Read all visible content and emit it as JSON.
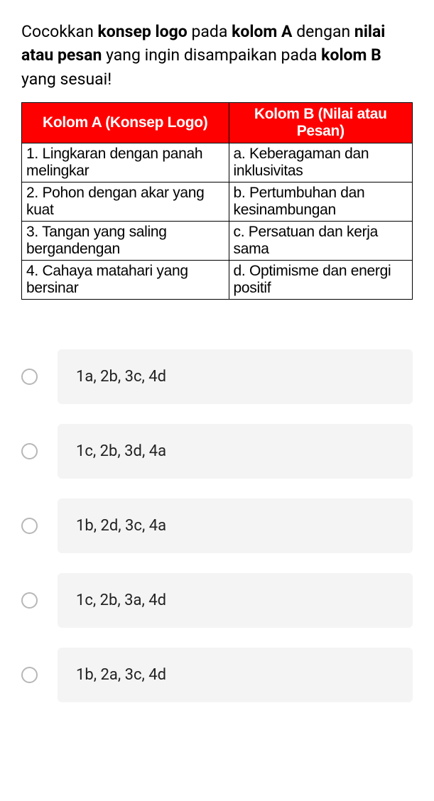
{
  "question": {
    "parts": [
      {
        "t": "Cocokkan ",
        "b": false
      },
      {
        "t": "konsep logo",
        "b": true
      },
      {
        "t": " pada ",
        "b": false
      },
      {
        "t": "kolom A",
        "b": true
      },
      {
        "t": " dengan ",
        "b": false
      },
      {
        "t": "nilai atau pesan",
        "b": true
      },
      {
        "t": " yang ingin disampaikan pada ",
        "b": false
      },
      {
        "t": "kolom B",
        "b": true
      },
      {
        "t": " yang sesuai!",
        "b": false
      }
    ]
  },
  "table": {
    "header_a": "Kolom A (Konsep Logo)",
    "header_b": "Kolom B (Nilai atau Pesan)",
    "rows": [
      {
        "a": "1. Lingkaran dengan panah melingkar",
        "b": "a. Keberagaman dan inklusivitas"
      },
      {
        "a": "2. Pohon dengan akar yang kuat",
        "b": "b. Pertumbuhan dan kesinambungan"
      },
      {
        "a": "3. Tangan yang saling bergandengan",
        "b": "c. Persatuan dan kerja sama"
      },
      {
        "a": "4. Cahaya matahari yang bersinar",
        "b": "d. Optimisme dan energi positif"
      }
    ],
    "header_bg": "#ff0000",
    "header_fg": "#ffffff",
    "border_color": "#000000"
  },
  "options": [
    "1a, 2b, 3c, 4d",
    "1c, 2b, 3d, 4a",
    "1b, 2d, 3c, 4a",
    "1c, 2b, 3a, 4d",
    "1b, 2a, 3c, 4d"
  ],
  "colors": {
    "option_bg": "#f4f4f4",
    "radio_border": "#b7b7b7"
  }
}
